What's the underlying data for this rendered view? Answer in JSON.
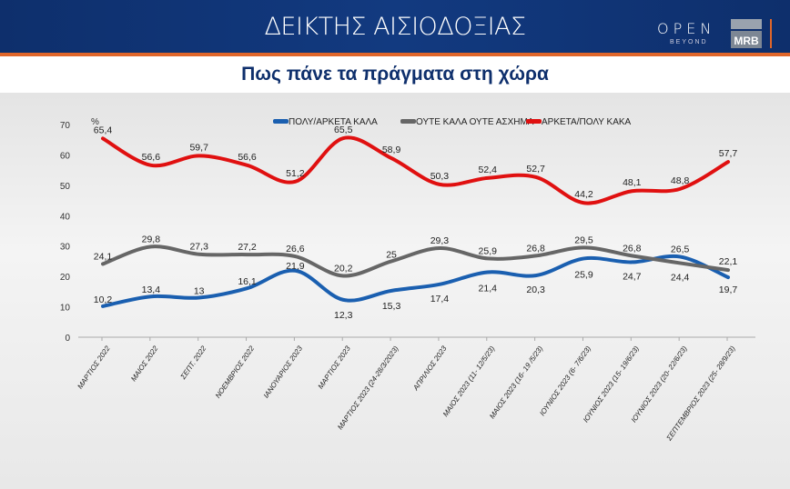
{
  "header": {
    "title": "ΔΕΙΚΤΗΣ ΑΙΣΙΟΔΟΞΙΑΣ",
    "logo_open": "OPEN",
    "logo_beyond": "BEYOND",
    "logo_mrb": "MRB"
  },
  "subtitle": "Πως πάνε τα πράγματα στη χώρα",
  "chart_data": {
    "type": "line",
    "ylabel": "%",
    "ylim": [
      0,
      70
    ],
    "yticks": [
      0,
      10,
      20,
      30,
      40,
      50,
      60,
      70
    ],
    "grid": true,
    "legend_position": "top",
    "categories": [
      "ΜΑΡΤΙΟΣ 2022",
      "ΜΑΙΟΣ 2022",
      "ΣΕΠΤ. 2022",
      "ΝΟΕΜΒΡΙΟΣ 2022",
      "ΙΑΝΟΥΑΡΙΟΣ 2023",
      "ΜΑΡΤΙΟΣ 2023",
      "ΜΑΡΤΙΟΣ 2023 (24-28/3/2023)",
      "ΑΠΡΙΛΙΟΣ 2023",
      "ΜΑΙΟΣ 2023 (11- 12/5/23)",
      "ΜΑΙΟΣ 2023 (16- 19 /5/23)",
      "ΙΟΥΝΙΟΣ 2023 (6- 7/6/23)",
      "ΙΟΥΝΙΟΣ 2023 (15- 19/6/23)",
      "ΙΟΥΝΙΟΣ 2023 (20- 22/6/23)",
      "ΣΕΠΤΕΜΒΡΙΟΣ 2023 (25- 28/9/23)"
    ],
    "series": [
      {
        "name": "ΠΟΛΥ/ΑΡΚΕΤΑ ΚΑΛΑ",
        "color": "#1a5fb0",
        "values": [
          10.2,
          13.4,
          13,
          16.1,
          21.9,
          12.3,
          15.3,
          17.4,
          21.4,
          20.3,
          25.9,
          24.7,
          26.5,
          19.7
        ]
      },
      {
        "name": "ΟΥΤΕ ΚΑΛΑ ΟΥΤΕ ΑΣΧΗΜΑ",
        "color": "#666666",
        "values": [
          24.1,
          29.8,
          27.3,
          27.2,
          26.6,
          20.2,
          25,
          29.3,
          25.9,
          26.8,
          29.5,
          26.8,
          24.4,
          22.1
        ]
      },
      {
        "name": "ΑΡΚΕΤΑ/ΠΟΛΥ ΚΑΚΑ",
        "color": "#e01010",
        "values": [
          65.4,
          56.6,
          59.7,
          56.6,
          51.2,
          65.5,
          58.9,
          50.3,
          52.4,
          52.7,
          44.2,
          48.1,
          48.8,
          57.7
        ]
      }
    ]
  }
}
